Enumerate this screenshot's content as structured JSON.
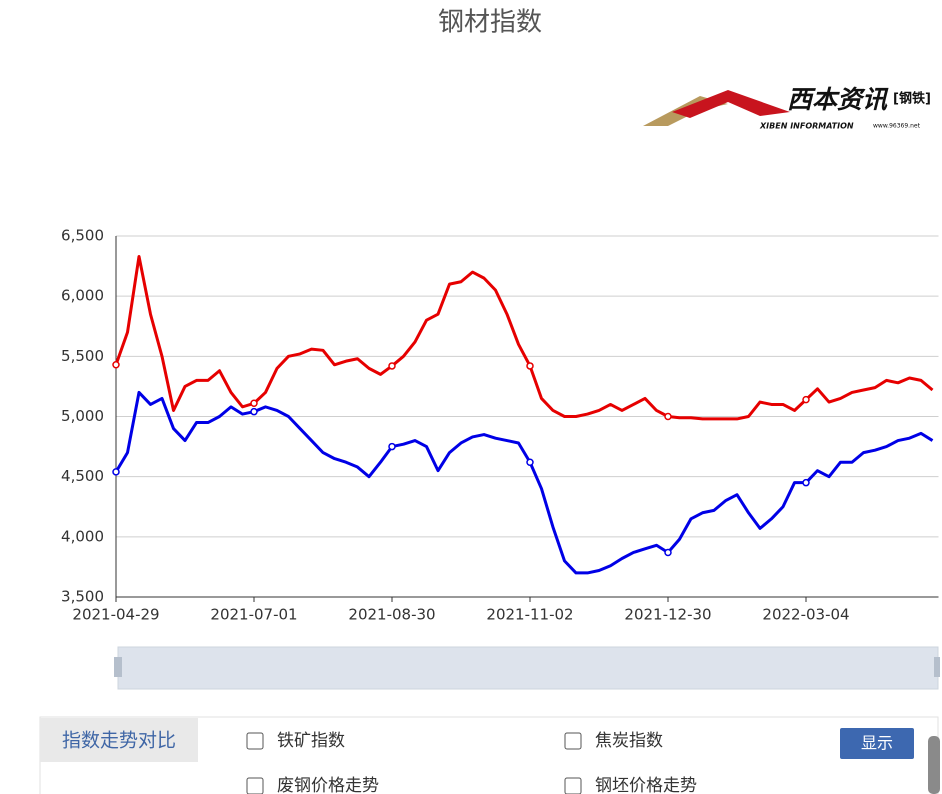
{
  "chart_data": {
    "type": "line",
    "title": "钢材指数",
    "categories": [
      "2021-04-29",
      null,
      null,
      null,
      null,
      null,
      null,
      null,
      null,
      null,
      null,
      null,
      "2021-07-01",
      null,
      null,
      null,
      null,
      null,
      null,
      null,
      null,
      null,
      null,
      null,
      "2021-08-30",
      null,
      null,
      null,
      null,
      null,
      null,
      null,
      null,
      null,
      null,
      null,
      "2021-11-02",
      null,
      null,
      null,
      null,
      null,
      null,
      null,
      null,
      null,
      null,
      null,
      "2021-12-30",
      null,
      null,
      null,
      null,
      null,
      null,
      null,
      null,
      null,
      null,
      null,
      "2022-03-04",
      null,
      null,
      null,
      null,
      null,
      null,
      null,
      null,
      null,
      null,
      null
    ],
    "series": [
      {
        "color": "#e60000",
        "values": [
          5430,
          5700,
          6330,
          5850,
          5500,
          5050,
          5250,
          5300,
          5300,
          5380,
          5200,
          5080,
          5110,
          5200,
          5400,
          5500,
          5520,
          5560,
          5550,
          5430,
          5460,
          5480,
          5400,
          5350,
          5420,
          5500,
          5620,
          5800,
          5850,
          6100,
          6120,
          6200,
          6150,
          6050,
          5850,
          5600,
          5420,
          5150,
          5050,
          5000,
          5000,
          5020,
          5050,
          5100,
          5050,
          5100,
          5150,
          5050,
          5000,
          4990,
          4990,
          4980,
          4980,
          4980,
          4980,
          5000,
          5120,
          5100,
          5100,
          5050,
          5140,
          5230,
          5120,
          5150,
          5200,
          5220,
          5240,
          5300,
          5280,
          5320,
          5300,
          5220
        ]
      },
      {
        "color": "#0000e6",
        "values": [
          4540,
          4700,
          5200,
          5100,
          5150,
          4900,
          4800,
          4950,
          4950,
          5000,
          5080,
          5020,
          5040,
          5080,
          5050,
          5000,
          4900,
          4800,
          4700,
          4650,
          4620,
          4580,
          4500,
          4620,
          4750,
          4770,
          4800,
          4750,
          4550,
          4700,
          4780,
          4830,
          4850,
          4820,
          4800,
          4780,
          4620,
          4400,
          4080,
          3800,
          3700,
          3700,
          3720,
          3760,
          3820,
          3870,
          3900,
          3930,
          3870,
          3980,
          4150,
          4200,
          4220,
          4300,
          4350,
          4200,
          4070,
          4150,
          4250,
          4450,
          4450,
          4550,
          4500,
          4620,
          4620,
          4700,
          4720,
          4750,
          4800,
          4820,
          4860,
          4800
        ]
      }
    ],
    "ylim": [
      3500,
      6500
    ],
    "yticks": [
      {
        "value": 3500,
        "label": "3,500"
      },
      {
        "value": 4000,
        "label": "4,000"
      },
      {
        "value": 4500,
        "label": "4,500"
      },
      {
        "value": 5000,
        "label": "5,000"
      },
      {
        "value": 5500,
        "label": "5,500"
      },
      {
        "value": 6000,
        "label": "6,000"
      },
      {
        "value": 6500,
        "label": "6,500"
      }
    ],
    "grid": true
  },
  "logo": {
    "name": "西本资讯",
    "tag": "[钢铁]",
    "english": "XIBEN INFORMATION",
    "url": "www.96369.net"
  },
  "controls": {
    "tab": "指数走势对比",
    "options": [
      "铁矿指数",
      "焦炭指数",
      "废钢价格走势",
      "钢坯价格走势"
    ],
    "button": "显示"
  }
}
